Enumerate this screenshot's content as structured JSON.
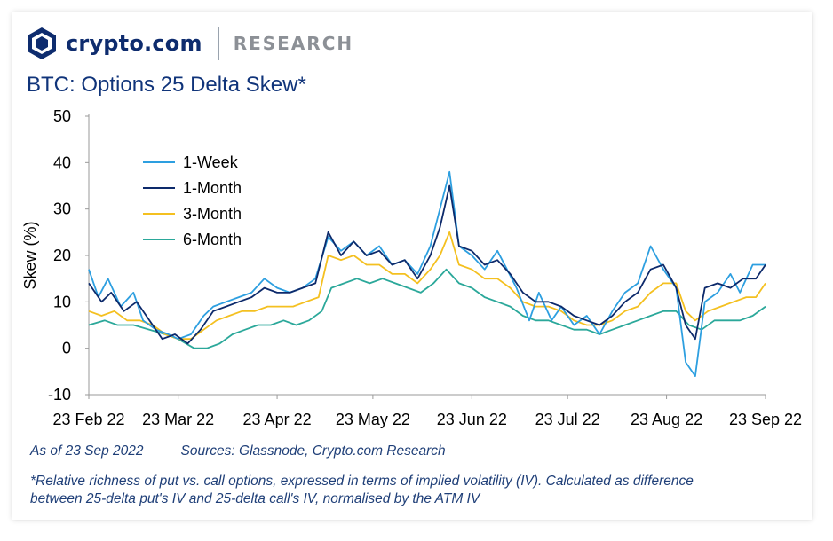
{
  "brand": {
    "name": "crypto.com",
    "section": "RESEARCH"
  },
  "title": "BTC: Options 25 Delta Skew*",
  "footer": {
    "as_of": "As of 23 Sep 2022",
    "sources": "Sources: Glassnode, Crypto.com Research",
    "footnote": "*Relative richness of put vs. call options, expressed in terms of implied volatility (IV). Calculated as difference between 25-delta put's IV and 25-delta call's IV, normalised by the ATM IV"
  },
  "colors": {
    "one_week": "#2d9fe0",
    "one_month": "#0d2a6b",
    "three_month": "#f4c020",
    "six_month": "#2ba89a"
  },
  "chart_data": {
    "type": "line",
    "title": "BTC: Options 25 Delta Skew*",
    "xlabel": "",
    "ylabel": "Skew (%)",
    "ylim": [
      -10,
      50
    ],
    "yticks": [
      -10,
      0,
      10,
      20,
      30,
      40,
      50
    ],
    "xlim": [
      "2022-02-23",
      "2022-09-23"
    ],
    "xticks": [
      {
        "date": "2022-02-23",
        "label": "23 Feb 22"
      },
      {
        "date": "2022-03-23",
        "label": "23 Mar 22"
      },
      {
        "date": "2022-04-23",
        "label": "23 Apr 22"
      },
      {
        "date": "2022-05-23",
        "label": "23 May 22"
      },
      {
        "date": "2022-06-23",
        "label": "23 Jun 22"
      },
      {
        "date": "2022-07-23",
        "label": "23 Jul 22"
      },
      {
        "date": "2022-08-23",
        "label": "23 Aug 22"
      },
      {
        "date": "2022-09-23",
        "label": "23 Sep 22"
      }
    ],
    "legend_position": "top-left",
    "grid": false,
    "series": [
      {
        "name": "1-Week",
        "color": "#2d9fe0",
        "points": [
          [
            "2022-02-23",
            17
          ],
          [
            "2022-02-26",
            11
          ],
          [
            "2022-03-01",
            15
          ],
          [
            "2022-03-05",
            9
          ],
          [
            "2022-03-09",
            12
          ],
          [
            "2022-03-12",
            6
          ],
          [
            "2022-03-16",
            4
          ],
          [
            "2022-03-20",
            3
          ],
          [
            "2022-03-23",
            2
          ],
          [
            "2022-03-27",
            3
          ],
          [
            "2022-03-31",
            7
          ],
          [
            "2022-04-03",
            9
          ],
          [
            "2022-04-07",
            10
          ],
          [
            "2022-04-11",
            11
          ],
          [
            "2022-04-15",
            12
          ],
          [
            "2022-04-19",
            15
          ],
          [
            "2022-04-23",
            13
          ],
          [
            "2022-04-27",
            12
          ],
          [
            "2022-05-01",
            13
          ],
          [
            "2022-05-05",
            15
          ],
          [
            "2022-05-09",
            24
          ],
          [
            "2022-05-13",
            21
          ],
          [
            "2022-05-17",
            23
          ],
          [
            "2022-05-21",
            20
          ],
          [
            "2022-05-25",
            22
          ],
          [
            "2022-05-29",
            18
          ],
          [
            "2022-06-02",
            19
          ],
          [
            "2022-06-06",
            16
          ],
          [
            "2022-06-10",
            22
          ],
          [
            "2022-06-13",
            30
          ],
          [
            "2022-06-16",
            38
          ],
          [
            "2022-06-19",
            22
          ],
          [
            "2022-06-23",
            20
          ],
          [
            "2022-06-27",
            17
          ],
          [
            "2022-07-01",
            21
          ],
          [
            "2022-07-04",
            17
          ],
          [
            "2022-07-07",
            13
          ],
          [
            "2022-07-11",
            6
          ],
          [
            "2022-07-14",
            12
          ],
          [
            "2022-07-18",
            6
          ],
          [
            "2022-07-21",
            9
          ],
          [
            "2022-07-25",
            5
          ],
          [
            "2022-07-29",
            7
          ],
          [
            "2022-08-02",
            3
          ],
          [
            "2022-08-06",
            8
          ],
          [
            "2022-08-10",
            12
          ],
          [
            "2022-08-14",
            14
          ],
          [
            "2022-08-18",
            22
          ],
          [
            "2022-08-22",
            17
          ],
          [
            "2022-08-26",
            13
          ],
          [
            "2022-08-29",
            -3
          ],
          [
            "2022-09-01",
            -6
          ],
          [
            "2022-09-04",
            10
          ],
          [
            "2022-09-08",
            12
          ],
          [
            "2022-09-12",
            16
          ],
          [
            "2022-09-15",
            12
          ],
          [
            "2022-09-19",
            18
          ],
          [
            "2022-09-23",
            18
          ]
        ]
      },
      {
        "name": "1-Month",
        "color": "#0d2a6b",
        "points": [
          [
            "2022-02-23",
            14
          ],
          [
            "2022-02-27",
            10
          ],
          [
            "2022-03-02",
            12
          ],
          [
            "2022-03-06",
            8
          ],
          [
            "2022-03-10",
            10
          ],
          [
            "2022-03-14",
            6
          ],
          [
            "2022-03-18",
            2
          ],
          [
            "2022-03-22",
            3
          ],
          [
            "2022-03-26",
            1
          ],
          [
            "2022-03-30",
            4
          ],
          [
            "2022-04-03",
            8
          ],
          [
            "2022-04-07",
            9
          ],
          [
            "2022-04-11",
            10
          ],
          [
            "2022-04-15",
            11
          ],
          [
            "2022-04-19",
            13
          ],
          [
            "2022-04-23",
            12
          ],
          [
            "2022-04-27",
            12
          ],
          [
            "2022-05-01",
            13
          ],
          [
            "2022-05-05",
            14
          ],
          [
            "2022-05-09",
            25
          ],
          [
            "2022-05-13",
            20
          ],
          [
            "2022-05-17",
            23
          ],
          [
            "2022-05-21",
            20
          ],
          [
            "2022-05-25",
            21
          ],
          [
            "2022-05-29",
            18
          ],
          [
            "2022-06-02",
            19
          ],
          [
            "2022-06-06",
            15
          ],
          [
            "2022-06-10",
            20
          ],
          [
            "2022-06-13",
            26
          ],
          [
            "2022-06-16",
            35
          ],
          [
            "2022-06-19",
            22
          ],
          [
            "2022-06-23",
            21
          ],
          [
            "2022-06-27",
            18
          ],
          [
            "2022-07-01",
            19
          ],
          [
            "2022-07-05",
            16
          ],
          [
            "2022-07-09",
            12
          ],
          [
            "2022-07-13",
            10
          ],
          [
            "2022-07-17",
            10
          ],
          [
            "2022-07-21",
            9
          ],
          [
            "2022-07-25",
            7
          ],
          [
            "2022-07-29",
            6
          ],
          [
            "2022-08-02",
            5
          ],
          [
            "2022-08-06",
            7
          ],
          [
            "2022-08-10",
            10
          ],
          [
            "2022-08-14",
            12
          ],
          [
            "2022-08-18",
            17
          ],
          [
            "2022-08-22",
            18
          ],
          [
            "2022-08-26",
            13
          ],
          [
            "2022-08-29",
            5
          ],
          [
            "2022-09-01",
            2
          ],
          [
            "2022-09-04",
            13
          ],
          [
            "2022-09-08",
            14
          ],
          [
            "2022-09-12",
            13
          ],
          [
            "2022-09-16",
            15
          ],
          [
            "2022-09-20",
            15
          ],
          [
            "2022-09-23",
            18
          ]
        ]
      },
      {
        "name": "3-Month",
        "color": "#f4c020",
        "points": [
          [
            "2022-02-23",
            8
          ],
          [
            "2022-02-27",
            7
          ],
          [
            "2022-03-03",
            8
          ],
          [
            "2022-03-07",
            6
          ],
          [
            "2022-03-11",
            6
          ],
          [
            "2022-03-15",
            5
          ],
          [
            "2022-03-19",
            3
          ],
          [
            "2022-03-23",
            2
          ],
          [
            "2022-03-27",
            2
          ],
          [
            "2022-03-31",
            4
          ],
          [
            "2022-04-04",
            6
          ],
          [
            "2022-04-08",
            7
          ],
          [
            "2022-04-12",
            8
          ],
          [
            "2022-04-16",
            8
          ],
          [
            "2022-04-20",
            9
          ],
          [
            "2022-04-24",
            9
          ],
          [
            "2022-04-28",
            9
          ],
          [
            "2022-05-02",
            10
          ],
          [
            "2022-05-06",
            11
          ],
          [
            "2022-05-09",
            20
          ],
          [
            "2022-05-13",
            19
          ],
          [
            "2022-05-17",
            20
          ],
          [
            "2022-05-21",
            18
          ],
          [
            "2022-05-25",
            18
          ],
          [
            "2022-05-29",
            16
          ],
          [
            "2022-06-02",
            16
          ],
          [
            "2022-06-06",
            14
          ],
          [
            "2022-06-10",
            17
          ],
          [
            "2022-06-13",
            20
          ],
          [
            "2022-06-16",
            25
          ],
          [
            "2022-06-19",
            18
          ],
          [
            "2022-06-23",
            17
          ],
          [
            "2022-06-27",
            15
          ],
          [
            "2022-07-01",
            15
          ],
          [
            "2022-07-05",
            13
          ],
          [
            "2022-07-09",
            10
          ],
          [
            "2022-07-13",
            9
          ],
          [
            "2022-07-17",
            9
          ],
          [
            "2022-07-21",
            8
          ],
          [
            "2022-07-25",
            6
          ],
          [
            "2022-07-29",
            5
          ],
          [
            "2022-08-02",
            5
          ],
          [
            "2022-08-06",
            6
          ],
          [
            "2022-08-10",
            8
          ],
          [
            "2022-08-14",
            9
          ],
          [
            "2022-08-18",
            12
          ],
          [
            "2022-08-22",
            14
          ],
          [
            "2022-08-26",
            14
          ],
          [
            "2022-08-29",
            8
          ],
          [
            "2022-09-01",
            6
          ],
          [
            "2022-09-05",
            8
          ],
          [
            "2022-09-09",
            9
          ],
          [
            "2022-09-13",
            10
          ],
          [
            "2022-09-17",
            11
          ],
          [
            "2022-09-20",
            11
          ],
          [
            "2022-09-23",
            14
          ]
        ]
      },
      {
        "name": "6-Month",
        "color": "#2ba89a",
        "points": [
          [
            "2022-02-23",
            5
          ],
          [
            "2022-02-28",
            6
          ],
          [
            "2022-03-04",
            5
          ],
          [
            "2022-03-09",
            5
          ],
          [
            "2022-03-14",
            4
          ],
          [
            "2022-03-19",
            3
          ],
          [
            "2022-03-23",
            2
          ],
          [
            "2022-03-28",
            0
          ],
          [
            "2022-04-01",
            0
          ],
          [
            "2022-04-05",
            1
          ],
          [
            "2022-04-09",
            3
          ],
          [
            "2022-04-13",
            4
          ],
          [
            "2022-04-17",
            5
          ],
          [
            "2022-04-21",
            5
          ],
          [
            "2022-04-25",
            6
          ],
          [
            "2022-04-29",
            5
          ],
          [
            "2022-05-03",
            6
          ],
          [
            "2022-05-07",
            8
          ],
          [
            "2022-05-10",
            13
          ],
          [
            "2022-05-14",
            14
          ],
          [
            "2022-05-18",
            15
          ],
          [
            "2022-05-22",
            14
          ],
          [
            "2022-05-26",
            15
          ],
          [
            "2022-05-30",
            14
          ],
          [
            "2022-06-03",
            13
          ],
          [
            "2022-06-07",
            12
          ],
          [
            "2022-06-11",
            14
          ],
          [
            "2022-06-15",
            17
          ],
          [
            "2022-06-19",
            14
          ],
          [
            "2022-06-23",
            13
          ],
          [
            "2022-06-27",
            11
          ],
          [
            "2022-07-01",
            10
          ],
          [
            "2022-07-05",
            9
          ],
          [
            "2022-07-09",
            7
          ],
          [
            "2022-07-13",
            6
          ],
          [
            "2022-07-17",
            6
          ],
          [
            "2022-07-21",
            5
          ],
          [
            "2022-07-25",
            4
          ],
          [
            "2022-07-29",
            4
          ],
          [
            "2022-08-02",
            3
          ],
          [
            "2022-08-06",
            4
          ],
          [
            "2022-08-10",
            5
          ],
          [
            "2022-08-14",
            6
          ],
          [
            "2022-08-18",
            7
          ],
          [
            "2022-08-22",
            8
          ],
          [
            "2022-08-26",
            8
          ],
          [
            "2022-08-30",
            5
          ],
          [
            "2022-09-03",
            4
          ],
          [
            "2022-09-07",
            6
          ],
          [
            "2022-09-11",
            6
          ],
          [
            "2022-09-15",
            6
          ],
          [
            "2022-09-19",
            7
          ],
          [
            "2022-09-23",
            9
          ]
        ]
      }
    ]
  }
}
